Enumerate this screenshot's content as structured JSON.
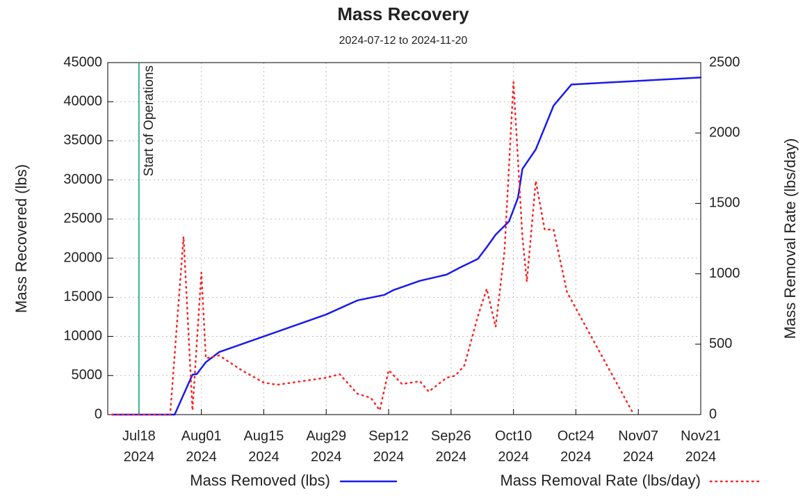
{
  "chart_data": {
    "type": "line",
    "title": "Mass Recovery",
    "subtitle": "2024-07-12 to 2024-11-20",
    "y_label": "Mass Recovered (lbs)",
    "y2_label": "Mass Removal Rate (lbs/day)",
    "xlim": [
      "2024-07-11",
      "2024-11-21"
    ],
    "xticks": [
      {
        "value": "2024-07-18",
        "label": "Jul18 2024"
      },
      {
        "value": "2024-08-01",
        "label": "Aug01 2024"
      },
      {
        "value": "2024-08-15",
        "label": "Aug15 2024"
      },
      {
        "value": "2024-08-29",
        "label": "Aug29 2024"
      },
      {
        "value": "2024-09-12",
        "label": "Sep12 2024"
      },
      {
        "value": "2024-09-26",
        "label": "Sep26 2024"
      },
      {
        "value": "2024-10-10",
        "label": "Oct10 2024"
      },
      {
        "value": "2024-10-24",
        "label": "Oct24 2024"
      },
      {
        "value": "2024-11-07",
        "label": "Nov07 2024"
      },
      {
        "value": "2024-11-21",
        "label": "Nov21 2024"
      }
    ],
    "ylim": [
      0,
      45000
    ],
    "yticks": [
      0,
      5000,
      10000,
      15000,
      20000,
      25000,
      30000,
      35000,
      40000,
      45000
    ],
    "y2lim": [
      0,
      2500
    ],
    "y2ticks": [
      0,
      500,
      1000,
      1500,
      2000,
      2500
    ],
    "grid": true,
    "legend": "bottom",
    "annotations": [
      {
        "x": "2024-07-18",
        "text": "Start of Operations",
        "color": "#009977"
      }
    ],
    "series": [
      {
        "name": "Mass Removed (lbs)",
        "color": "#1a1aee",
        "style": "solid",
        "x": [
          "2024-07-12",
          "2024-07-26",
          "2024-07-30",
          "2024-07-31",
          "2024-08-02",
          "2024-08-05",
          "2024-08-29",
          "2024-09-05",
          "2024-09-11",
          "2024-09-13",
          "2024-09-19",
          "2024-09-25",
          "2024-09-28",
          "2024-10-02",
          "2024-10-04",
          "2024-10-06",
          "2024-10-09",
          "2024-10-11",
          "2024-10-12",
          "2024-10-15",
          "2024-10-19",
          "2024-10-23",
          "2024-11-21"
        ],
        "values": [
          0,
          0,
          5100,
          5200,
          6700,
          8000,
          12800,
          14600,
          15300,
          15900,
          17100,
          17900,
          18800,
          19900,
          21400,
          23000,
          24700,
          27700,
          31400,
          33900,
          39500,
          42200,
          43100
        ]
      },
      {
        "name": "Mass Removal Rate (lbs/day)",
        "color": "#ff2020",
        "style": "dotted",
        "axis": "y2",
        "x": [
          "2024-07-12",
          "2024-07-25",
          "2024-07-28",
          "2024-07-30",
          "2024-08-01",
          "2024-08-02",
          "2024-08-05",
          "2024-08-10",
          "2024-08-15",
          "2024-08-18",
          "2024-08-29",
          "2024-09-01",
          "2024-09-05",
          "2024-09-08",
          "2024-09-10",
          "2024-09-12",
          "2024-09-15",
          "2024-09-19",
          "2024-09-21",
          "2024-09-25",
          "2024-09-27",
          "2024-09-29",
          "2024-10-02",
          "2024-10-04",
          "2024-10-06",
          "2024-10-08",
          "2024-10-10",
          "2024-10-12",
          "2024-10-13",
          "2024-10-15",
          "2024-10-17",
          "2024-10-19",
          "2024-10-22",
          "2024-11-06"
        ],
        "values": [
          0,
          0,
          1265,
          30,
          1008,
          400,
          420,
          316,
          227,
          212,
          262,
          287,
          148,
          119,
          30,
          316,
          217,
          237,
          163,
          262,
          277,
          350,
          697,
          894,
          623,
          1166,
          2362,
          1265,
          944,
          1660,
          1314,
          1314,
          870,
          0
        ]
      }
    ]
  }
}
